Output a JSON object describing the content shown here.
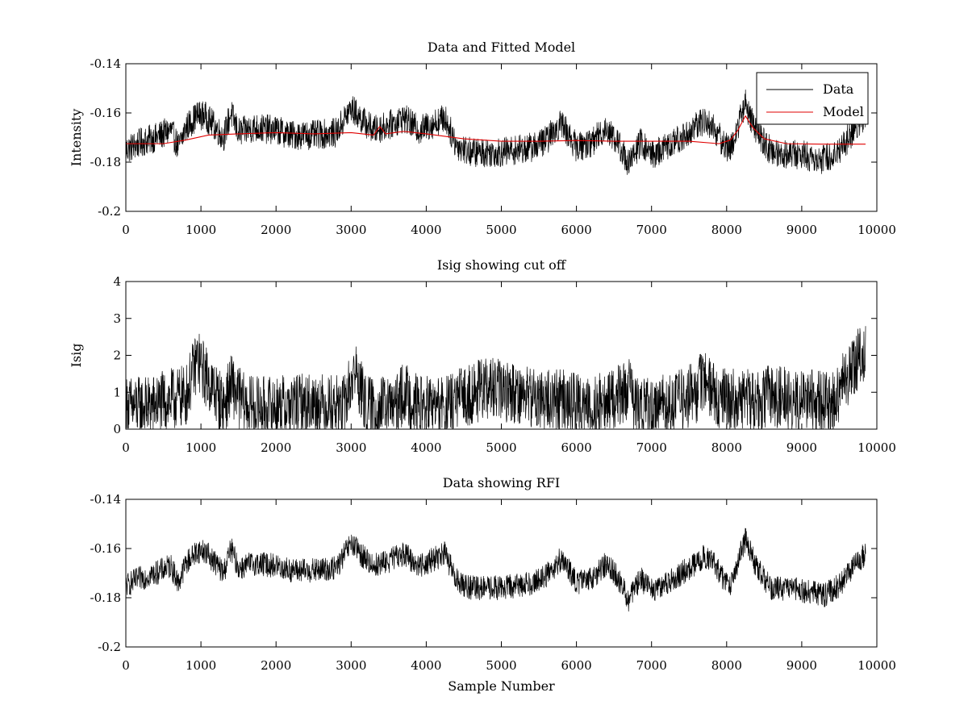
{
  "chart_data": [
    {
      "type": "line",
      "title": "Data and Fitted Model",
      "xlabel": "",
      "ylabel": "Intensity",
      "xlim": [
        0,
        10000
      ],
      "ylim": [
        -0.2,
        -0.14
      ],
      "x_ticks": [
        0,
        1000,
        2000,
        3000,
        4000,
        5000,
        6000,
        7000,
        8000,
        9000,
        10000
      ],
      "x_tick_labels": [
        "0",
        "1000",
        "2000",
        "3000",
        "4000",
        "5000",
        "6000",
        "7000",
        "8000",
        "9000",
        "10000"
      ],
      "y_ticks": [
        -0.2,
        -0.18,
        -0.16,
        -0.14
      ],
      "y_tick_labels": [
        "-0.2",
        "-0.18",
        "-0.16",
        "-0.14"
      ],
      "legend": {
        "position": "top-right",
        "entries": [
          "Data",
          "Model"
        ]
      },
      "series": [
        {
          "name": "Data",
          "color": "#000000",
          "noise_amplitude": 0.006,
          "x": [
            0,
            200,
            400,
            600,
            700,
            800,
            950,
            1050,
            1200,
            1300,
            1400,
            1500,
            1700,
            2000,
            2200,
            2500,
            2800,
            3000,
            3150,
            3300,
            3500,
            3700,
            3900,
            4050,
            4250,
            4400,
            4600,
            5000,
            5400,
            5600,
            5800,
            6000,
            6200,
            6400,
            6550,
            6700,
            6850,
            7000,
            7200,
            7500,
            7700,
            7800,
            7950,
            8050,
            8150,
            8250,
            8400,
            8600,
            9000,
            9300,
            9500,
            9700,
            9850
          ],
          "y": [
            -0.175,
            -0.172,
            -0.17,
            -0.167,
            -0.174,
            -0.166,
            -0.161,
            -0.161,
            -0.166,
            -0.17,
            -0.16,
            -0.168,
            -0.166,
            -0.167,
            -0.169,
            -0.169,
            -0.168,
            -0.158,
            -0.163,
            -0.167,
            -0.165,
            -0.162,
            -0.167,
            -0.165,
            -0.162,
            -0.173,
            -0.176,
            -0.176,
            -0.174,
            -0.171,
            -0.164,
            -0.174,
            -0.172,
            -0.166,
            -0.172,
            -0.181,
            -0.172,
            -0.177,
            -0.174,
            -0.168,
            -0.163,
            -0.165,
            -0.172,
            -0.175,
            -0.165,
            -0.156,
            -0.168,
            -0.176,
            -0.177,
            -0.179,
            -0.175,
            -0.167,
            -0.162
          ]
        },
        {
          "name": "Model",
          "color": "#e00000",
          "noise_amplitude": 0,
          "x": [
            0,
            500,
            800,
            1100,
            1500,
            2000,
            2500,
            3000,
            3300,
            3380,
            3460,
            3700,
            4000,
            4500,
            5000,
            5500,
            6000,
            6500,
            7000,
            7500,
            7900,
            8050,
            8150,
            8250,
            8350,
            8500,
            8800,
            9300,
            9850
          ],
          "y": [
            -0.1725,
            -0.1725,
            -0.171,
            -0.169,
            -0.1685,
            -0.168,
            -0.1685,
            -0.168,
            -0.169,
            -0.1655,
            -0.1685,
            -0.1675,
            -0.1685,
            -0.1705,
            -0.1715,
            -0.1715,
            -0.1712,
            -0.1715,
            -0.1715,
            -0.1715,
            -0.1725,
            -0.171,
            -0.167,
            -0.1612,
            -0.166,
            -0.1705,
            -0.1725,
            -0.1727,
            -0.1727
          ]
        }
      ]
    },
    {
      "type": "line",
      "title": "Isig showing cut off",
      "xlabel": "",
      "ylabel": "Isig",
      "xlim": [
        0,
        10000
      ],
      "ylim": [
        0,
        4
      ],
      "x_ticks": [
        0,
        1000,
        2000,
        3000,
        4000,
        5000,
        6000,
        7000,
        8000,
        9000,
        10000
      ],
      "x_tick_labels": [
        "0",
        "1000",
        "2000",
        "3000",
        "4000",
        "5000",
        "6000",
        "7000",
        "8000",
        "9000",
        "10000"
      ],
      "y_ticks": [
        0,
        1,
        2,
        3,
        4
      ],
      "y_tick_labels": [
        "0",
        "1",
        "2",
        "3",
        "4"
      ],
      "series": [
        {
          "name": "Isig",
          "color": "#000000",
          "noise_amplitude": 0.85,
          "x": [
            0,
            300,
            600,
            800,
            950,
            1100,
            1300,
            1400,
            1600,
            2000,
            2500,
            2900,
            3050,
            3200,
            3600,
            3700,
            3900,
            4300,
            4500,
            4800,
            5200,
            5500,
            5800,
            6100,
            6400,
            6700,
            6800,
            7000,
            7300,
            7600,
            7700,
            7900,
            8200,
            8600,
            9000,
            9400,
            9600,
            9700,
            9850
          ],
          "y": [
            0.6,
            0.6,
            0.8,
            0.9,
            1.9,
            1.3,
            0.6,
            1.2,
            0.6,
            0.6,
            0.7,
            0.6,
            1.6,
            0.6,
            0.6,
            1.0,
            0.6,
            0.6,
            0.9,
            1.1,
            1.0,
            0.8,
            0.8,
            0.6,
            0.7,
            1.1,
            0.6,
            0.6,
            0.7,
            1.0,
            1.4,
            0.8,
            0.8,
            0.9,
            0.8,
            0.7,
            1.4,
            1.8,
            2.0
          ]
        }
      ]
    },
    {
      "type": "line",
      "title": "Data showing RFI",
      "xlabel": "Sample Number",
      "ylabel": "",
      "xlim": [
        0,
        10000
      ],
      "ylim": [
        -0.2,
        -0.14
      ],
      "x_ticks": [
        0,
        1000,
        2000,
        3000,
        4000,
        5000,
        6000,
        7000,
        8000,
        9000,
        10000
      ],
      "x_tick_labels": [
        "0",
        "1000",
        "2000",
        "3000",
        "4000",
        "5000",
        "6000",
        "7000",
        "8000",
        "9000",
        "10000"
      ],
      "y_ticks": [
        -0.2,
        -0.18,
        -0.16,
        -0.14
      ],
      "y_tick_labels": [
        "-0.2",
        "-0.18",
        "-0.16",
        "-0.14"
      ],
      "series": [
        {
          "name": "Data",
          "color": "#000000",
          "noise_amplitude": 0.005,
          "x": [
            0,
            200,
            400,
            600,
            700,
            800,
            950,
            1050,
            1200,
            1300,
            1400,
            1500,
            1700,
            2000,
            2200,
            2500,
            2800,
            3000,
            3150,
            3300,
            3500,
            3700,
            3900,
            4050,
            4250,
            4400,
            4600,
            5000,
            5400,
            5600,
            5800,
            6000,
            6200,
            6400,
            6550,
            6700,
            6850,
            7000,
            7200,
            7500,
            7700,
            7800,
            7950,
            8050,
            8150,
            8250,
            8400,
            8600,
            9000,
            9300,
            9500,
            9700,
            9850
          ],
          "y": [
            -0.175,
            -0.172,
            -0.17,
            -0.167,
            -0.174,
            -0.166,
            -0.161,
            -0.161,
            -0.166,
            -0.17,
            -0.16,
            -0.168,
            -0.166,
            -0.167,
            -0.169,
            -0.169,
            -0.168,
            -0.158,
            -0.163,
            -0.167,
            -0.165,
            -0.162,
            -0.167,
            -0.165,
            -0.162,
            -0.173,
            -0.176,
            -0.176,
            -0.174,
            -0.171,
            -0.164,
            -0.174,
            -0.172,
            -0.166,
            -0.172,
            -0.181,
            -0.172,
            -0.177,
            -0.174,
            -0.168,
            -0.163,
            -0.165,
            -0.172,
            -0.175,
            -0.165,
            -0.156,
            -0.168,
            -0.176,
            -0.177,
            -0.179,
            -0.175,
            -0.167,
            -0.162
          ]
        }
      ]
    }
  ]
}
